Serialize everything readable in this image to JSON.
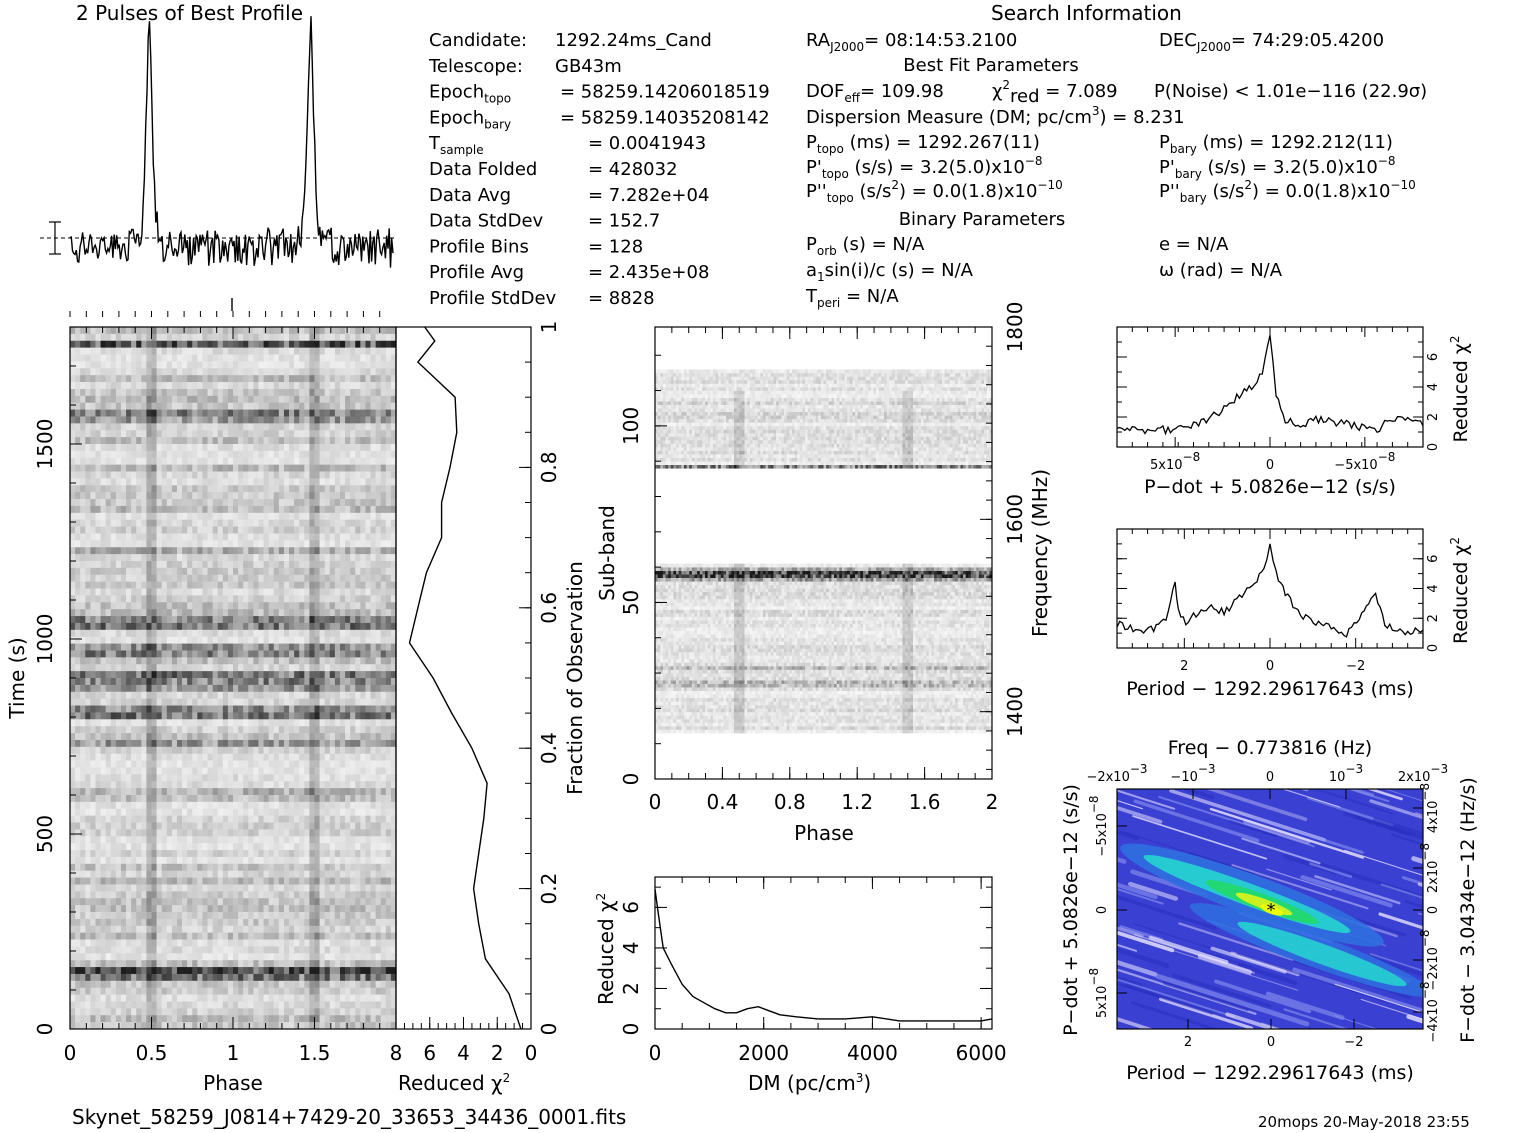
{
  "header": {
    "profile_title": "2 Pulses of Best Profile",
    "search_title": "Search Information",
    "best_fit_title": "Best Fit Parameters",
    "binary_title": "Binary Parameters",
    "filename": "Skynet_58259_J0814+7429-20_33653_34436_0001.fits",
    "footer_right": "20mops 20-May-2018 23:55"
  },
  "info_left": [
    {
      "label": "Candidate:",
      "value": "1292.24ms_Cand"
    },
    {
      "label": "Telescope:",
      "value": "GB43m"
    },
    {
      "label": "Epoch",
      "sub": "topo",
      "value": "= 58259.14206018519"
    },
    {
      "label": "Epoch",
      "sub": "bary",
      "value": "= 58259.14035208142"
    },
    {
      "label": "T",
      "sub": "sample",
      "value": "=   0.0041943"
    },
    {
      "label": "Data Folded",
      "value": "=   428032"
    },
    {
      "label": "Data Avg",
      "value": "=   7.282e+04"
    },
    {
      "label": "Data StdDev",
      "value": "=   152.7"
    },
    {
      "label": "Profile Bins",
      "value": "=   128"
    },
    {
      "label": "Profile Avg",
      "value": "=   2.435e+08"
    },
    {
      "label": "Profile StdDev",
      "value": "=   8828"
    }
  ],
  "info_mid": {
    "ra": {
      "label": "RA",
      "sub": "J2000",
      "value": "= 08:14:53.2100"
    },
    "dec": {
      "label": "DEC",
      "sub": "J2000",
      "value": "= 74:29:05.4200"
    },
    "dof": {
      "label": "DOF",
      "sub": "eff",
      "value": "= 109.98"
    },
    "chi2": {
      "label": "χ",
      "sup": "2",
      "sub": "red",
      "value": "= 7.089"
    },
    "pnoise": "P(Noise) < 1.01e−116   (22.9σ)",
    "dm_line": "Dispersion Measure (DM; pc/cm",
    "dm_sup": "3",
    "dm_value": ") = 8.231",
    "ptopo": {
      "label": "P",
      "sub": "topo",
      "value": " (ms) =   1292.267(11)"
    },
    "pbary": {
      "label": "P",
      "sub": "bary",
      "value": " (ms) =   1292.212(11)"
    },
    "pdtopo": {
      "label": "P'",
      "sub": "topo",
      "value": " (s/s) =   3.2(5.0)x10",
      "exp": "−8"
    },
    "pdbary": {
      "label": "P'",
      "sub": "bary",
      "value": " (s/s) =   3.2(5.0)x10",
      "exp": "−8"
    },
    "pddtopo": {
      "label": "P''",
      "sub": "topo",
      "value": " (s/s",
      "sup": "2",
      "value2": ") = 0.0(1.8)x10",
      "exp": "−10"
    },
    "pddbary": {
      "label": "P''",
      "sub": "bary",
      "value": " (s/s",
      "sup": "2",
      "value2": ") = 0.0(1.8)x10",
      "exp": "−10"
    },
    "porb": {
      "label": "P",
      "sub": "orb",
      "value": " (s) = N/A"
    },
    "asini": {
      "label": "a",
      "sub": "1",
      "value": "sin(i)/c (s) = N/A"
    },
    "tperi": {
      "label": "T",
      "sub": "peri",
      "value": " = N/A"
    },
    "ecc": "e = N/A",
    "omega": "ω (rad) = N/A"
  },
  "colors": {
    "ink": "#000000",
    "grey_dark": "#222222",
    "heat_low": "#3a3fd0",
    "heat_mid": "#22c9d8",
    "heat_high": "#1ed05a",
    "heat_peak": "#f0ff00"
  },
  "chart_data": [
    {
      "type": "line",
      "name": "profile",
      "title": "2 Pulses of Best Profile",
      "x_range": [
        0,
        2
      ],
      "peaks_at_phase": [
        0.49,
        1.49
      ]
    },
    {
      "type": "heatmap",
      "name": "time-phase",
      "xlabel": "Phase",
      "ylabel": "Time (s)",
      "xlim": [
        0,
        2
      ],
      "ylim": [
        0,
        1800
      ],
      "xticks": [
        "0",
        "0.5",
        "1",
        "1.5"
      ],
      "yticks": [
        "0",
        "500",
        "1000",
        "1500"
      ]
    },
    {
      "type": "line",
      "name": "reduced-chi2-vs-time",
      "xlabel": "Reduced χ",
      "xlabel_sup": "2",
      "ylabel": "Fraction of Observation",
      "xlim": [
        8,
        0
      ],
      "ylim": [
        0,
        1
      ],
      "xticks": [
        "8",
        "6",
        "4",
        "2",
        "0"
      ],
      "yticks": [
        "0",
        "0.2",
        "0.4",
        "0.6",
        "0.8",
        "1"
      ],
      "fraction": [
        0,
        0.05,
        0.1,
        0.15,
        0.2,
        0.25,
        0.3,
        0.35,
        0.4,
        0.45,
        0.5,
        0.55,
        0.6,
        0.65,
        0.7,
        0.75,
        0.8,
        0.85,
        0.9,
        0.95,
        0.98,
        1.0
      ],
      "values": [
        0.6,
        1.3,
        2.7,
        3.1,
        3.4,
        3.1,
        2.8,
        2.6,
        3.5,
        4.7,
        5.8,
        7.2,
        6.7,
        6.2,
        5.3,
        5.3,
        4.8,
        4.4,
        4.5,
        6.7,
        5.7,
        6.3
      ]
    },
    {
      "type": "heatmap",
      "name": "subband-phase",
      "xlabel": "Phase",
      "ylabel": "Sub-band",
      "ylabel_right": "Frequency (MHz)",
      "xlim": [
        0,
        2
      ],
      "ylim": [
        0,
        128
      ],
      "xticks": [
        "0",
        "0.4",
        "0.8",
        "1.2",
        "1.6",
        "2"
      ],
      "yticks": [
        "0",
        "50",
        "100"
      ],
      "freq_ticks": [
        "1400",
        "1600",
        "1800"
      ]
    },
    {
      "type": "line",
      "name": "chi2-vs-dm",
      "xlabel": "DM (pc/cm",
      "xlabel_sup": "3",
      "xlabel_end": ")",
      "ylabel": "Reduced χ",
      "ylabel_sup": "2",
      "xlim": [
        0,
        6200
      ],
      "ylim": [
        0,
        7.5
      ],
      "xticks": [
        "0",
        "2000",
        "4000",
        "6000"
      ],
      "yticks": [
        "0",
        "2",
        "4",
        "6"
      ],
      "x": [
        0,
        60,
        150,
        300,
        500,
        700,
        900,
        1100,
        1300,
        1500,
        1700,
        1900,
        2100,
        2300,
        2600,
        3000,
        3500,
        4000,
        4500,
        5000,
        5500,
        6000,
        6200
      ],
      "y": [
        6.9,
        5.7,
        4.0,
        3.2,
        2.2,
        1.6,
        1.3,
        1.0,
        0.8,
        0.8,
        1.0,
        1.1,
        0.9,
        0.7,
        0.6,
        0.5,
        0.5,
        0.6,
        0.4,
        0.4,
        0.4,
        0.4,
        0.5
      ]
    },
    {
      "type": "line",
      "name": "chi2-vs-pdot",
      "xlabel": "P−dot + 5.0826e−12 (s/s)",
      "ylabel": "Reduced χ",
      "ylabel_sup": "2",
      "xticks": [
        "5x10",
        "0",
        "−5x10"
      ],
      "xtick_exp": "−8",
      "yticks": [
        "0",
        "2",
        "4",
        "6"
      ],
      "ylim": [
        0,
        8
      ],
      "x": [
        -1,
        -0.8,
        -0.6,
        -0.4,
        -0.3,
        -0.2,
        -0.12,
        -0.05,
        0,
        0.04,
        0.1,
        0.2,
        0.3,
        0.5,
        0.7,
        0.85,
        1
      ],
      "y": [
        1.3,
        1.1,
        1.2,
        1.8,
        2.6,
        3.5,
        4.0,
        4.9,
        7.5,
        3.6,
        1.8,
        1.3,
        1.8,
        1.5,
        1.2,
        2.1,
        1.4
      ]
    },
    {
      "type": "line",
      "name": "chi2-vs-period",
      "xlabel": "Period − 1292.29617643 (ms)",
      "ylabel": "Reduced χ",
      "ylabel_sup": "2",
      "xticks": [
        "2",
        "0",
        "−2"
      ],
      "yticks": [
        "0",
        "2",
        "4",
        "6"
      ],
      "ylim": [
        0,
        8
      ],
      "x": [
        -1,
        -0.86,
        -0.76,
        -0.68,
        -0.62,
        -0.6,
        -0.55,
        -0.4,
        -0.3,
        -0.2,
        -0.1,
        -0.04,
        0,
        0.04,
        0.1,
        0.2,
        0.35,
        0.5,
        0.6,
        0.66,
        0.69,
        0.75,
        0.85,
        1
      ],
      "y": [
        1.6,
        1.1,
        1.3,
        1.9,
        4.5,
        2.6,
        1.7,
        2.9,
        2.4,
        3.4,
        4.4,
        5.2,
        7.2,
        5.0,
        3.7,
        2.2,
        1.5,
        1.0,
        2.2,
        3.1,
        3.6,
        1.6,
        1.1,
        1.2
      ]
    },
    {
      "type": "heatmap",
      "name": "period-pdot",
      "title": "Freq − 0.773816 (Hz)",
      "xlabel": "Period − 1292.29617643 (ms)",
      "ylabel": "P−dot + 5.0826e−12 (s/s)",
      "ylabel_right": "F−dot − 3.0434e−12 (Hz/s)",
      "xticks": [
        "2",
        "0",
        "−2"
      ],
      "top_ticks": [
        "−2x10",
        "−10",
        "0",
        "10",
        "2x10"
      ],
      "top_exp": "−3",
      "left_ticks": [
        "−5x10",
        "0",
        "5x10"
      ],
      "left_exp": "−8",
      "right_ticks": [
        "4x10",
        "2x10",
        "0",
        "−2x10",
        "−4x10"
      ],
      "right_exp": "−8"
    }
  ]
}
